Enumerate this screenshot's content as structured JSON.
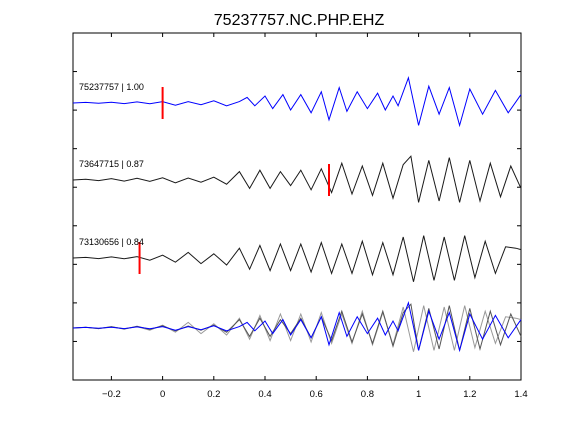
{
  "chart_data": {
    "type": "line",
    "title": "75237757.NC.PHP.EHZ",
    "xlabel": "",
    "ylabel": "",
    "xlim": [
      -0.35,
      1.4
    ],
    "x_ticks": [
      -0.2,
      0,
      0.2,
      0.4,
      0.6,
      0.8,
      1,
      1.2,
      1.4
    ],
    "x_tick_labels": [
      "−0.2",
      "0",
      "0.2",
      "0.4",
      "0.6",
      "0.8",
      "1",
      "1.2",
      "1.4"
    ],
    "grid": false,
    "series": [
      {
        "label": "75237757 | 1.00",
        "color": "#0000ff",
        "pick_time": 0.0,
        "waveform": [
          [
            -0.35,
            0.0
          ],
          [
            -0.3,
            0.02
          ],
          [
            -0.25,
            -0.01
          ],
          [
            -0.2,
            0.03
          ],
          [
            -0.15,
            -0.02
          ],
          [
            -0.1,
            0.04
          ],
          [
            -0.05,
            -0.03
          ],
          [
            0,
            0.05
          ],
          [
            0.05,
            -0.08
          ],
          [
            0.1,
            0.05
          ],
          [
            0.15,
            -0.06
          ],
          [
            0.2,
            0.08
          ],
          [
            0.25,
            -0.1
          ],
          [
            0.3,
            0.05
          ],
          [
            0.33,
            0.2
          ],
          [
            0.36,
            -0.1
          ],
          [
            0.4,
            0.25
          ],
          [
            0.43,
            -0.2
          ],
          [
            0.47,
            0.3
          ],
          [
            0.5,
            -0.25
          ],
          [
            0.54,
            0.3
          ],
          [
            0.58,
            -0.35
          ],
          [
            0.62,
            0.4
          ],
          [
            0.65,
            -0.6
          ],
          [
            0.69,
            0.55
          ],
          [
            0.72,
            -0.3
          ],
          [
            0.76,
            0.4
          ],
          [
            0.8,
            -0.2
          ],
          [
            0.84,
            0.35
          ],
          [
            0.87,
            -0.25
          ],
          [
            0.9,
            0.25
          ],
          [
            0.92,
            -0.1
          ],
          [
            0.96,
            0.9
          ],
          [
            1.0,
            -0.8
          ],
          [
            1.04,
            0.6
          ],
          [
            1.08,
            -0.4
          ],
          [
            1.12,
            0.55
          ],
          [
            1.16,
            -0.8
          ],
          [
            1.2,
            0.5
          ],
          [
            1.25,
            -0.4
          ],
          [
            1.3,
            0.45
          ],
          [
            1.35,
            -0.35
          ],
          [
            1.4,
            0.3
          ]
        ]
      },
      {
        "label": "73647715 | 0.87",
        "color": "#1a1a1a",
        "pick_time": 0.65,
        "waveform": [
          [
            -0.35,
            0.0
          ],
          [
            -0.3,
            0.03
          ],
          [
            -0.25,
            -0.02
          ],
          [
            -0.2,
            0.05
          ],
          [
            -0.15,
            -0.04
          ],
          [
            -0.1,
            0.06
          ],
          [
            -0.05,
            -0.05
          ],
          [
            0,
            0.08
          ],
          [
            0.05,
            -0.1
          ],
          [
            0.1,
            0.07
          ],
          [
            0.15,
            -0.08
          ],
          [
            0.2,
            0.1
          ],
          [
            0.25,
            -0.15
          ],
          [
            0.3,
            0.3
          ],
          [
            0.34,
            -0.3
          ],
          [
            0.38,
            0.35
          ],
          [
            0.42,
            -0.3
          ],
          [
            0.46,
            0.3
          ],
          [
            0.5,
            -0.2
          ],
          [
            0.54,
            0.35
          ],
          [
            0.58,
            -0.35
          ],
          [
            0.62,
            0.4
          ],
          [
            0.66,
            -0.45
          ],
          [
            0.7,
            0.6
          ],
          [
            0.74,
            -0.5
          ],
          [
            0.78,
            0.5
          ],
          [
            0.82,
            -0.55
          ],
          [
            0.86,
            0.6
          ],
          [
            0.9,
            -0.65
          ],
          [
            0.94,
            0.55
          ],
          [
            0.97,
            0.85
          ],
          [
            1.0,
            -0.8
          ],
          [
            1.04,
            0.7
          ],
          [
            1.08,
            -0.75
          ],
          [
            1.12,
            0.8
          ],
          [
            1.16,
            -0.8
          ],
          [
            1.2,
            0.7
          ],
          [
            1.24,
            -0.75
          ],
          [
            1.28,
            0.6
          ],
          [
            1.32,
            -0.6
          ],
          [
            1.36,
            0.5
          ],
          [
            1.4,
            -0.3
          ]
        ]
      },
      {
        "label": "73130656 | 0.84",
        "color": "#1a1a1a",
        "pick_time": -0.09,
        "waveform": [
          [
            -0.35,
            0.0
          ],
          [
            -0.3,
            0.02
          ],
          [
            -0.25,
            -0.02
          ],
          [
            -0.2,
            0.04
          ],
          [
            -0.15,
            -0.03
          ],
          [
            -0.1,
            0.05
          ],
          [
            -0.05,
            -0.08
          ],
          [
            0,
            0.1
          ],
          [
            0.05,
            -0.15
          ],
          [
            0.1,
            0.2
          ],
          [
            0.15,
            -0.2
          ],
          [
            0.2,
            0.15
          ],
          [
            0.25,
            -0.25
          ],
          [
            0.3,
            0.35
          ],
          [
            0.34,
            -0.4
          ],
          [
            0.38,
            0.45
          ],
          [
            0.42,
            -0.45
          ],
          [
            0.46,
            0.5
          ],
          [
            0.5,
            -0.45
          ],
          [
            0.54,
            0.5
          ],
          [
            0.58,
            -0.5
          ],
          [
            0.62,
            0.55
          ],
          [
            0.66,
            -0.55
          ],
          [
            0.7,
            0.5
          ],
          [
            0.74,
            -0.55
          ],
          [
            0.78,
            0.6
          ],
          [
            0.82,
            -0.6
          ],
          [
            0.86,
            0.55
          ],
          [
            0.9,
            -0.6
          ],
          [
            0.94,
            0.75
          ],
          [
            0.98,
            -0.85
          ],
          [
            1.02,
            0.8
          ],
          [
            1.06,
            -0.8
          ],
          [
            1.1,
            0.75
          ],
          [
            1.14,
            -0.8
          ],
          [
            1.18,
            0.8
          ],
          [
            1.22,
            -0.7
          ],
          [
            1.26,
            0.6
          ],
          [
            1.3,
            -0.55
          ],
          [
            1.34,
            0.4
          ],
          [
            1.38,
            0.35
          ],
          [
            1.4,
            0.3
          ]
        ]
      }
    ]
  }
}
